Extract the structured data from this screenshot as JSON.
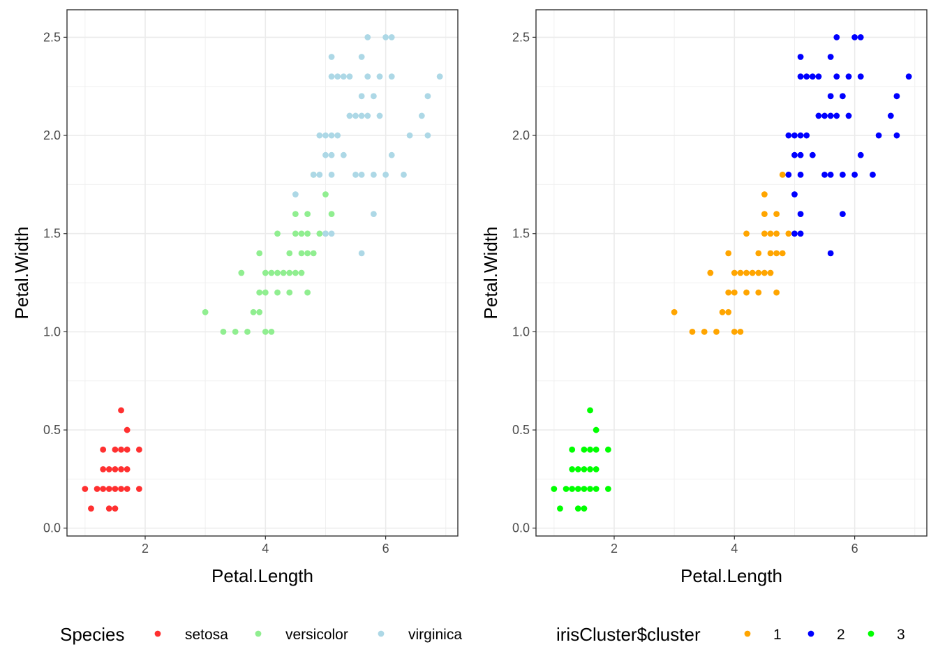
{
  "chart_data": [
    {
      "type": "scatter",
      "title": "",
      "xlabel": "Petal.Length",
      "ylabel": "Petal.Width",
      "xlim": [
        0.7,
        7.2
      ],
      "ylim": [
        -0.04,
        2.64
      ],
      "xticks": [
        2,
        4,
        6
      ],
      "xtick_labels": [
        "2",
        "4",
        "6"
      ],
      "yticks": [
        0,
        0.5,
        1,
        1.5,
        2,
        2.5
      ],
      "ytick_labels": [
        "0.0",
        "0.5",
        "1.0",
        "1.5",
        "2.0",
        "2.5"
      ],
      "grid": true,
      "legend_position": "bottom",
      "legend_title": "Species",
      "series": [
        {
          "name": "setosa",
          "color": "#ff3030",
          "points": [
            [
              1.0,
              0.2
            ],
            [
              1.1,
              0.1
            ],
            [
              1.2,
              0.2
            ],
            [
              1.3,
              0.2
            ],
            [
              1.3,
              0.3
            ],
            [
              1.3,
              0.4
            ],
            [
              1.4,
              0.2
            ],
            [
              1.4,
              0.3
            ],
            [
              1.4,
              0.1
            ],
            [
              1.5,
              0.2
            ],
            [
              1.5,
              0.4
            ],
            [
              1.5,
              0.3
            ],
            [
              1.5,
              0.1
            ],
            [
              1.6,
              0.2
            ],
            [
              1.6,
              0.4
            ],
            [
              1.6,
              0.6
            ],
            [
              1.6,
              0.3
            ],
            [
              1.7,
              0.2
            ],
            [
              1.7,
              0.3
            ],
            [
              1.7,
              0.4
            ],
            [
              1.7,
              0.5
            ],
            [
              1.9,
              0.2
            ],
            [
              1.9,
              0.4
            ]
          ]
        },
        {
          "name": "versicolor",
          "color": "#90ee90",
          "points": [
            [
              3.0,
              1.1
            ],
            [
              3.3,
              1.0
            ],
            [
              3.5,
              1.0
            ],
            [
              3.6,
              1.3
            ],
            [
              3.7,
              1.0
            ],
            [
              3.8,
              1.1
            ],
            [
              3.9,
              1.1
            ],
            [
              3.9,
              1.2
            ],
            [
              3.9,
              1.4
            ],
            [
              4.0,
              1.0
            ],
            [
              4.0,
              1.2
            ],
            [
              4.0,
              1.3
            ],
            [
              4.1,
              1.0
            ],
            [
              4.1,
              1.3
            ],
            [
              4.2,
              1.2
            ],
            [
              4.2,
              1.3
            ],
            [
              4.2,
              1.5
            ],
            [
              4.3,
              1.3
            ],
            [
              4.4,
              1.2
            ],
            [
              4.4,
              1.3
            ],
            [
              4.4,
              1.4
            ],
            [
              4.5,
              1.3
            ],
            [
              4.5,
              1.5
            ],
            [
              4.5,
              1.6
            ],
            [
              4.6,
              1.3
            ],
            [
              4.6,
              1.4
            ],
            [
              4.6,
              1.5
            ],
            [
              4.7,
              1.2
            ],
            [
              4.7,
              1.4
            ],
            [
              4.7,
              1.5
            ],
            [
              4.7,
              1.6
            ],
            [
              4.8,
              1.4
            ],
            [
              4.8,
              1.8
            ],
            [
              4.9,
              1.5
            ],
            [
              5.0,
              1.7
            ],
            [
              5.0,
              1.5
            ],
            [
              5.1,
              1.6
            ]
          ]
        },
        {
          "name": "virginica",
          "color": "#add8e6",
          "points": [
            [
              4.5,
              1.7
            ],
            [
              4.8,
              1.8
            ],
            [
              4.9,
              1.8
            ],
            [
              4.9,
              2.0
            ],
            [
              5.0,
              1.5
            ],
            [
              5.0,
              1.9
            ],
            [
              5.0,
              2.0
            ],
            [
              5.1,
              1.5
            ],
            [
              5.1,
              1.8
            ],
            [
              5.1,
              1.9
            ],
            [
              5.1,
              2.0
            ],
            [
              5.1,
              2.3
            ],
            [
              5.1,
              2.4
            ],
            [
              5.2,
              2.0
            ],
            [
              5.2,
              2.3
            ],
            [
              5.3,
              1.9
            ],
            [
              5.3,
              2.3
            ],
            [
              5.4,
              2.1
            ],
            [
              5.4,
              2.3
            ],
            [
              5.5,
              1.8
            ],
            [
              5.5,
              2.1
            ],
            [
              5.6,
              1.4
            ],
            [
              5.6,
              1.8
            ],
            [
              5.6,
              2.1
            ],
            [
              5.6,
              2.2
            ],
            [
              5.6,
              2.4
            ],
            [
              5.7,
              2.1
            ],
            [
              5.7,
              2.3
            ],
            [
              5.7,
              2.5
            ],
            [
              5.8,
              1.6
            ],
            [
              5.8,
              1.8
            ],
            [
              5.8,
              2.2
            ],
            [
              5.9,
              2.1
            ],
            [
              5.9,
              2.3
            ],
            [
              6.0,
              1.8
            ],
            [
              6.0,
              2.5
            ],
            [
              6.1,
              1.9
            ],
            [
              6.1,
              2.3
            ],
            [
              6.1,
              2.5
            ],
            [
              6.3,
              1.8
            ],
            [
              6.4,
              2.0
            ],
            [
              6.6,
              2.1
            ],
            [
              6.7,
              2.0
            ],
            [
              6.7,
              2.2
            ],
            [
              6.9,
              2.3
            ]
          ]
        }
      ]
    },
    {
      "type": "scatter",
      "title": "",
      "xlabel": "Petal.Length",
      "ylabel": "Petal.Width",
      "xlim": [
        0.7,
        7.2
      ],
      "ylim": [
        -0.04,
        2.64
      ],
      "xticks": [
        2,
        4,
        6
      ],
      "xtick_labels": [
        "2",
        "4",
        "6"
      ],
      "yticks": [
        0,
        0.5,
        1,
        1.5,
        2,
        2.5
      ],
      "ytick_labels": [
        "0.0",
        "0.5",
        "1.0",
        "1.5",
        "2.0",
        "2.5"
      ],
      "grid": true,
      "legend_position": "bottom",
      "legend_title": "irisCluster$cluster",
      "series": [
        {
          "name": "1",
          "color": "#ffa500",
          "points": [
            [
              3.0,
              1.1
            ],
            [
              3.3,
              1.0
            ],
            [
              3.5,
              1.0
            ],
            [
              3.6,
              1.3
            ],
            [
              3.7,
              1.0
            ],
            [
              3.8,
              1.1
            ],
            [
              3.9,
              1.1
            ],
            [
              3.9,
              1.2
            ],
            [
              3.9,
              1.4
            ],
            [
              4.0,
              1.0
            ],
            [
              4.0,
              1.2
            ],
            [
              4.0,
              1.3
            ],
            [
              4.1,
              1.0
            ],
            [
              4.1,
              1.3
            ],
            [
              4.2,
              1.2
            ],
            [
              4.2,
              1.3
            ],
            [
              4.2,
              1.5
            ],
            [
              4.3,
              1.3
            ],
            [
              4.4,
              1.2
            ],
            [
              4.4,
              1.3
            ],
            [
              4.4,
              1.4
            ],
            [
              4.5,
              1.3
            ],
            [
              4.5,
              1.5
            ],
            [
              4.5,
              1.6
            ],
            [
              4.5,
              1.7
            ],
            [
              4.6,
              1.3
            ],
            [
              4.6,
              1.4
            ],
            [
              4.6,
              1.5
            ],
            [
              4.7,
              1.2
            ],
            [
              4.7,
              1.4
            ],
            [
              4.7,
              1.5
            ],
            [
              4.7,
              1.6
            ],
            [
              4.8,
              1.4
            ],
            [
              4.8,
              1.8
            ],
            [
              4.9,
              1.5
            ]
          ]
        },
        {
          "name": "2",
          "color": "#0000ff",
          "points": [
            [
              4.9,
              1.8
            ],
            [
              4.9,
              2.0
            ],
            [
              5.0,
              1.5
            ],
            [
              5.0,
              1.7
            ],
            [
              5.0,
              1.9
            ],
            [
              5.0,
              2.0
            ],
            [
              5.1,
              1.5
            ],
            [
              5.1,
              1.6
            ],
            [
              5.1,
              1.8
            ],
            [
              5.1,
              1.9
            ],
            [
              5.1,
              2.0
            ],
            [
              5.1,
              2.3
            ],
            [
              5.1,
              2.4
            ],
            [
              5.2,
              2.0
            ],
            [
              5.2,
              2.3
            ],
            [
              5.3,
              1.9
            ],
            [
              5.3,
              2.3
            ],
            [
              5.4,
              2.1
            ],
            [
              5.4,
              2.3
            ],
            [
              5.5,
              1.8
            ],
            [
              5.5,
              2.1
            ],
            [
              5.6,
              1.4
            ],
            [
              5.6,
              1.8
            ],
            [
              5.6,
              2.1
            ],
            [
              5.6,
              2.2
            ],
            [
              5.6,
              2.4
            ],
            [
              5.7,
              2.1
            ],
            [
              5.7,
              2.3
            ],
            [
              5.7,
              2.5
            ],
            [
              5.8,
              1.6
            ],
            [
              5.8,
              1.8
            ],
            [
              5.8,
              2.2
            ],
            [
              5.9,
              2.1
            ],
            [
              5.9,
              2.3
            ],
            [
              6.0,
              1.8
            ],
            [
              6.0,
              2.5
            ],
            [
              6.1,
              1.9
            ],
            [
              6.1,
              2.3
            ],
            [
              6.1,
              2.5
            ],
            [
              6.3,
              1.8
            ],
            [
              6.4,
              2.0
            ],
            [
              6.6,
              2.1
            ],
            [
              6.7,
              2.0
            ],
            [
              6.7,
              2.2
            ],
            [
              6.9,
              2.3
            ]
          ]
        },
        {
          "name": "3",
          "color": "#00ff00",
          "points": [
            [
              1.0,
              0.2
            ],
            [
              1.1,
              0.1
            ],
            [
              1.2,
              0.2
            ],
            [
              1.3,
              0.2
            ],
            [
              1.3,
              0.3
            ],
            [
              1.3,
              0.4
            ],
            [
              1.4,
              0.2
            ],
            [
              1.4,
              0.3
            ],
            [
              1.4,
              0.1
            ],
            [
              1.5,
              0.2
            ],
            [
              1.5,
              0.4
            ],
            [
              1.5,
              0.3
            ],
            [
              1.5,
              0.1
            ],
            [
              1.6,
              0.2
            ],
            [
              1.6,
              0.4
            ],
            [
              1.6,
              0.6
            ],
            [
              1.6,
              0.3
            ],
            [
              1.7,
              0.2
            ],
            [
              1.7,
              0.3
            ],
            [
              1.7,
              0.4
            ],
            [
              1.7,
              0.5
            ],
            [
              1.9,
              0.2
            ],
            [
              1.9,
              0.4
            ]
          ]
        }
      ]
    }
  ]
}
